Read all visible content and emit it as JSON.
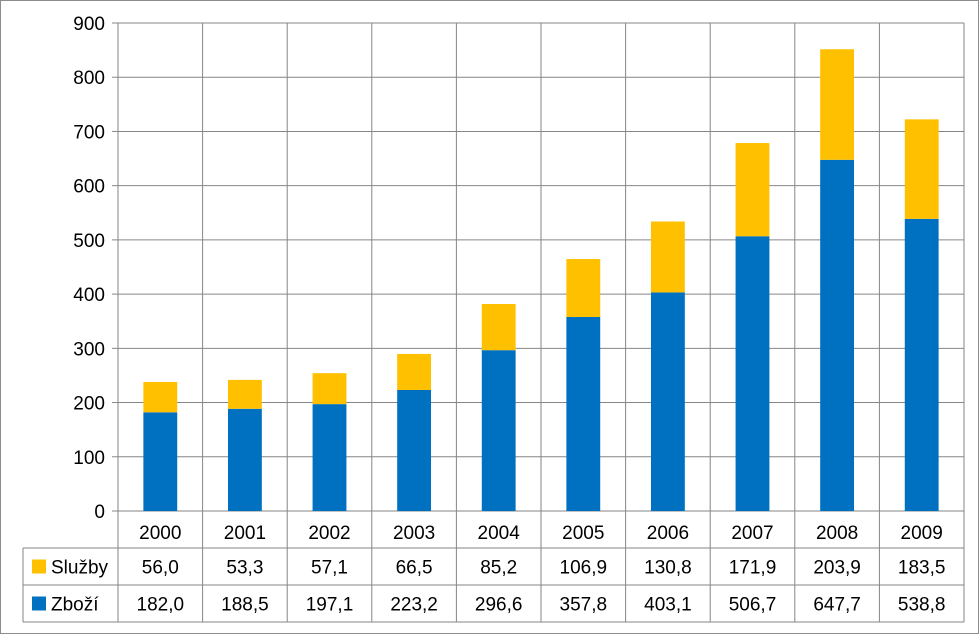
{
  "chart_data": {
    "type": "bar",
    "stacked": true,
    "categories": [
      "2000",
      "2001",
      "2002",
      "2003",
      "2004",
      "2005",
      "2006",
      "2007",
      "2008",
      "2009"
    ],
    "series": [
      {
        "name": "Zboží",
        "color": "#0070C0",
        "values": [
          182.0,
          188.5,
          197.1,
          223.2,
          296.6,
          357.8,
          403.1,
          506.7,
          647.7,
          538.8
        ],
        "labels": [
          "182,0",
          "188,5",
          "197,1",
          "223,2",
          "296,6",
          "357,8",
          "403,1",
          "506,7",
          "647,7",
          "538,8"
        ]
      },
      {
        "name": "Služby",
        "color": "#FFC000",
        "values": [
          56.0,
          53.3,
          57.1,
          66.5,
          85.2,
          106.9,
          130.8,
          171.9,
          203.9,
          183.5
        ],
        "labels": [
          "56,0",
          "53,3",
          "57,1",
          "66,5",
          "85,2",
          "106,9",
          "130,8",
          "171,9",
          "203,9",
          "183,5"
        ]
      }
    ],
    "ylim": [
      0,
      900
    ],
    "yticks": [
      0,
      100,
      200,
      300,
      400,
      500,
      600,
      700,
      800,
      900
    ],
    "grid": true,
    "legend": "data-table",
    "data_table_rows": [
      "Služby",
      "Zboží"
    ],
    "title": "",
    "xlabel": "",
    "ylabel": ""
  }
}
